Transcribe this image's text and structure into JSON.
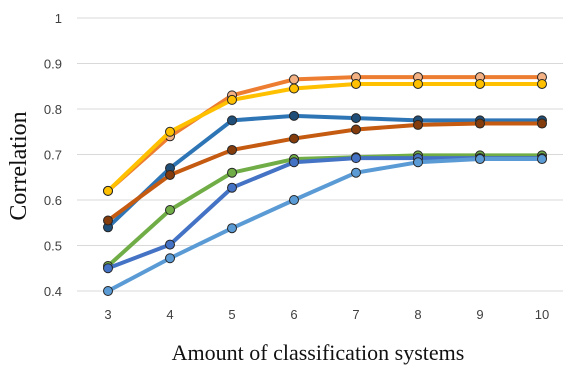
{
  "chart_data": {
    "type": "line",
    "title": "",
    "xlabel": "Amount of classification systems",
    "ylabel": "Correlation",
    "x": [
      3,
      4,
      5,
      6,
      7,
      8,
      9,
      10
    ],
    "x_tick_labels": [
      "3",
      "4",
      "5",
      "6",
      "7",
      "8",
      "9",
      "10"
    ],
    "ylim": [
      0.4,
      1
    ],
    "y_ticks": [
      0.4,
      0.5,
      0.6,
      0.7,
      0.8,
      0.9,
      1
    ],
    "y_tick_labels": [
      "0.4",
      "0.5",
      "0.6",
      "0.7",
      "0.8",
      "0.9",
      "1"
    ],
    "grid": true,
    "legend": "none",
    "series": [
      {
        "color": "#ED7D31",
        "marker_fill": "#F4B183",
        "values": [
          0.62,
          0.74,
          0.83,
          0.865,
          0.87,
          0.87,
          0.87,
          0.87
        ]
      },
      {
        "color": "#FFC000",
        "marker_fill": "#FFC000",
        "values": [
          0.62,
          0.75,
          0.82,
          0.845,
          0.855,
          0.855,
          0.855,
          0.855
        ]
      },
      {
        "color": "#2E75B6",
        "marker_fill": "#1F4E79",
        "values": [
          0.54,
          0.67,
          0.775,
          0.785,
          0.78,
          0.775,
          0.775,
          0.775
        ]
      },
      {
        "color": "#C55A11",
        "marker_fill": "#843C0C",
        "values": [
          0.555,
          0.655,
          0.71,
          0.735,
          0.755,
          0.765,
          0.768,
          0.768
        ]
      },
      {
        "color": "#70AD47",
        "marker_fill": "#70AD47",
        "values": [
          0.455,
          0.578,
          0.66,
          0.69,
          0.694,
          0.698,
          0.698,
          0.698
        ]
      },
      {
        "color": "#4472C4",
        "marker_fill": "#4472C4",
        "values": [
          0.45,
          0.502,
          0.627,
          0.683,
          0.692,
          0.692,
          0.692,
          0.692
        ]
      },
      {
        "color": "#5B9BD5",
        "marker_fill": "#5B9BD5",
        "values": [
          0.4,
          0.472,
          0.538,
          0.6,
          0.66,
          0.683,
          0.69,
          0.69
        ]
      }
    ]
  }
}
